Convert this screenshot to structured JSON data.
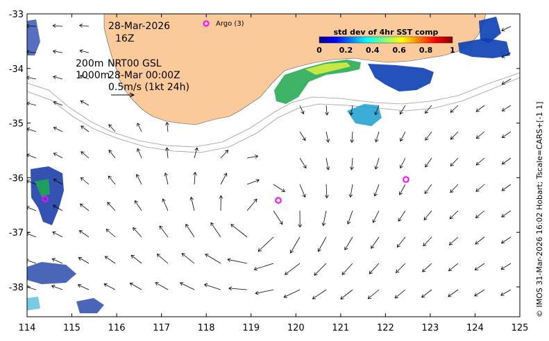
{
  "map": {
    "date": "28-Mar-2026",
    "hour": "16Z",
    "argo_label": "Argo (3)",
    "legend": {
      "line1_left": "200m",
      "line1_right": "NRT00 GSL",
      "line2_left": "1000m",
      "line2_right": "28-Mar 00:00Z",
      "scale": "0.5m/s (1kt 24h)"
    },
    "colorbar": {
      "title": "std dev of 4hr SST comp",
      "ticks": [
        "0",
        "0.2",
        "0.4",
        "0.6",
        "0.8",
        "1"
      ]
    },
    "credit": "© IMOS 31-Mar-2026 16:02 Hobart; Tscale=CARS+[-1 1]",
    "x_axis": {
      "ticks": [
        "114",
        "115",
        "116",
        "117",
        "118",
        "119",
        "120",
        "121",
        "122",
        "123",
        "124",
        "125"
      ],
      "min": 114,
      "max": 125
    },
    "y_axis": {
      "ticks": [
        "-33",
        "-34",
        "-35",
        "-36",
        "-37",
        "-38"
      ],
      "min": -38.5,
      "max": -33
    },
    "argo_floats": [
      {
        "lon": 114.4,
        "lat": -36.35
      },
      {
        "lon": 119.6,
        "lat": -36.38
      },
      {
        "lon": 122.5,
        "lat": -36.0
      }
    ],
    "colors": {
      "land": "#fbca9b",
      "argo": "#ff00ff",
      "contour": "#999999"
    }
  }
}
